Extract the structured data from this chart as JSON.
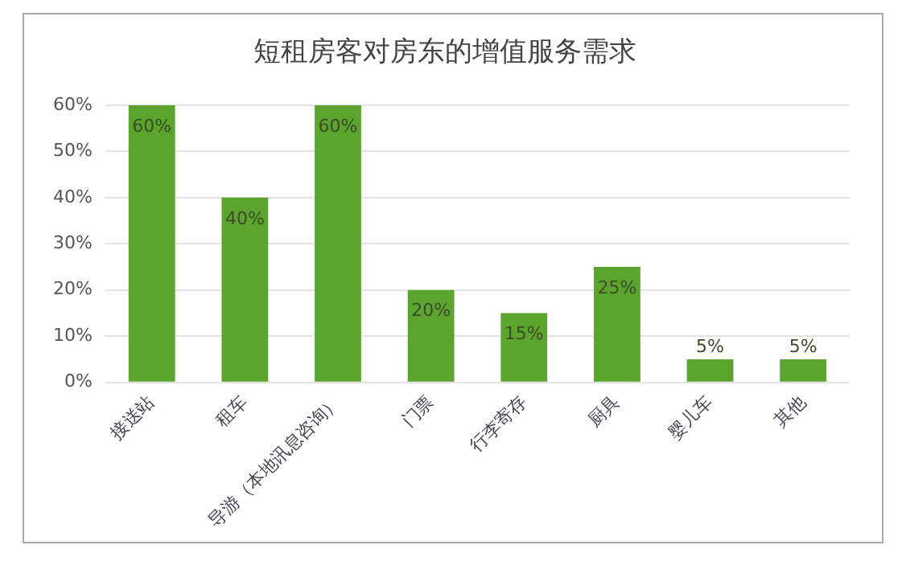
{
  "chart_data": {
    "type": "bar",
    "title": "短租房客对房东的增值服务需求",
    "categories": [
      "接送站",
      "租车",
      "导游（本地讯息咨询）",
      "门票",
      "行李寄存",
      "厨具",
      "婴儿车",
      "其他"
    ],
    "values": [
      60,
      40,
      60,
      20,
      15,
      25,
      5,
      5
    ],
    "value_labels": [
      "60%",
      "40%",
      "60%",
      "20%",
      "15%",
      "25%",
      "5%",
      "5%"
    ],
    "color": "#5ba52e",
    "ylim": [
      0,
      60
    ],
    "yticks": [
      {
        "value": 0,
        "label": "0%"
      },
      {
        "value": 10,
        "label": "10%"
      },
      {
        "value": 20,
        "label": "20%"
      },
      {
        "value": 30,
        "label": "30%"
      },
      {
        "value": 40,
        "label": "40%"
      },
      {
        "value": 50,
        "label": "50%"
      },
      {
        "value": 60,
        "label": "60%"
      }
    ],
    "grid": "y",
    "legend": false
  }
}
